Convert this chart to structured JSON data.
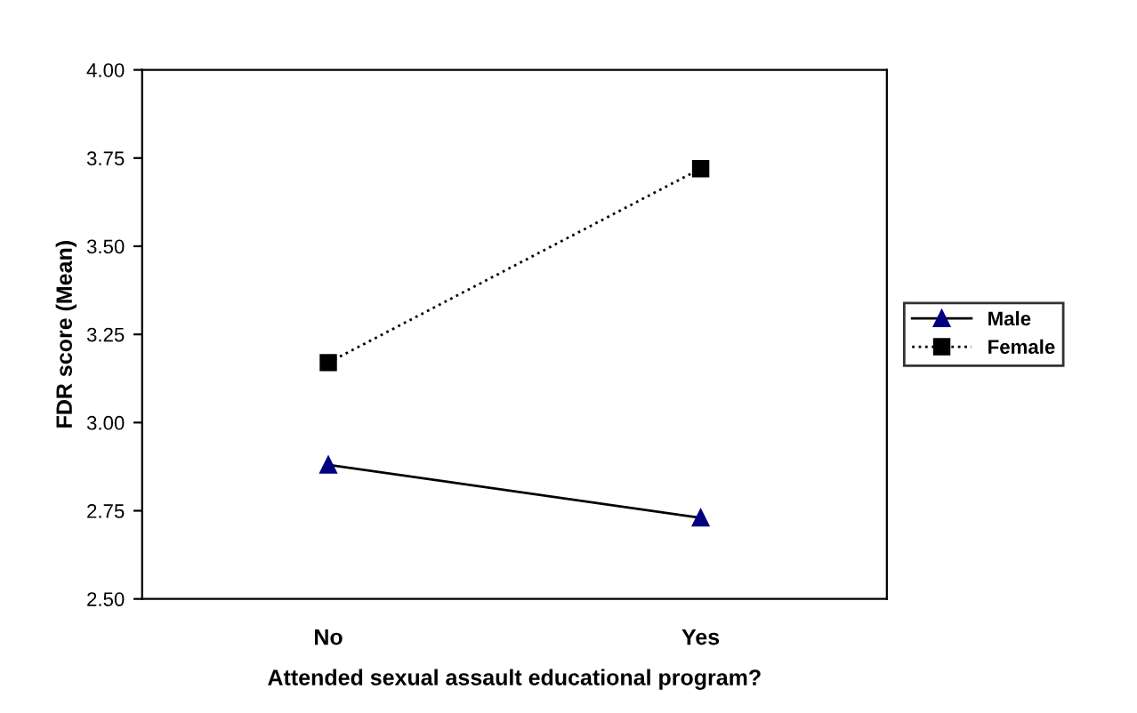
{
  "chart_data": {
    "type": "line",
    "xlabel": "Attended sexual assault educational program?",
    "ylabel": "FDR score (Mean)",
    "categories": [
      "No",
      "Yes"
    ],
    "series": [
      {
        "name": "Male",
        "color": "#000080",
        "values": [
          2.88,
          2.73
        ],
        "marker": "triangle",
        "line_style": "solid"
      },
      {
        "name": "Female",
        "color": "#000000",
        "values": [
          3.17,
          3.72
        ],
        "marker": "square",
        "line_style": "dotted"
      }
    ],
    "ylim": [
      2.5,
      4.0
    ],
    "yticks": [
      {
        "value": 2.5,
        "label": "2.50"
      },
      {
        "value": 2.75,
        "label": "2.75"
      },
      {
        "value": 3.0,
        "label": "3.00"
      },
      {
        "value": 3.25,
        "label": "3.25"
      },
      {
        "value": 3.5,
        "label": "3.50"
      },
      {
        "value": 3.75,
        "label": "3.75"
      },
      {
        "value": 4.0,
        "label": "4.00"
      }
    ],
    "grid": false,
    "legend": "right"
  }
}
